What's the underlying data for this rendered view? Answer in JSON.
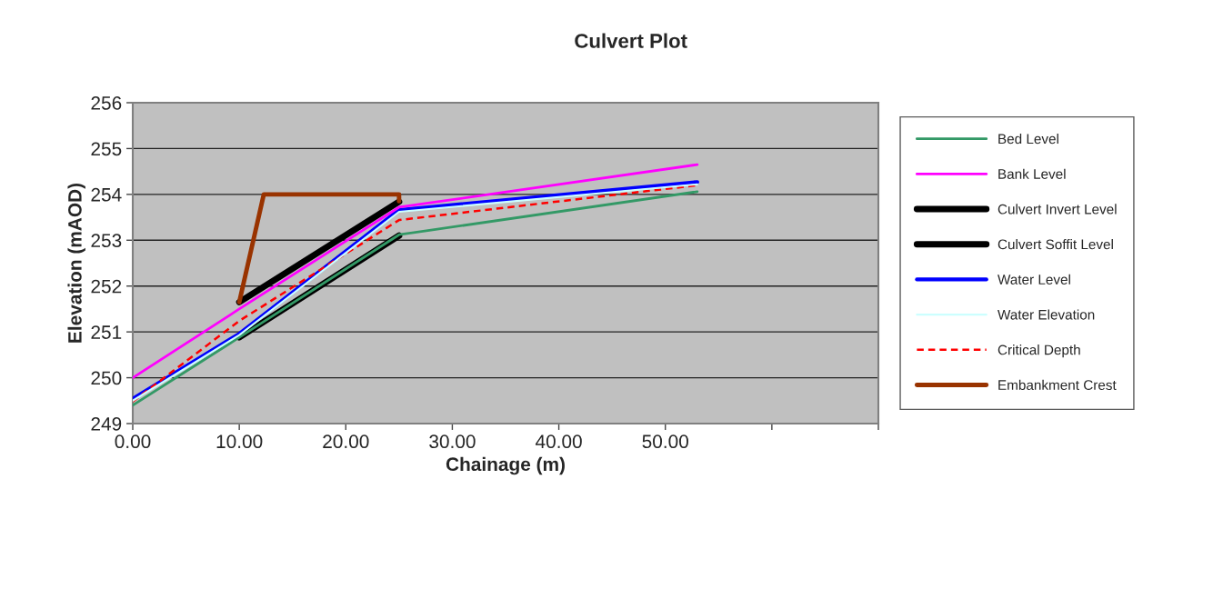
{
  "chart_data": {
    "type": "line",
    "title": "Culvert Plot",
    "xlabel": "Chainage (m)",
    "ylabel": "Elevation (mAOD)",
    "xlim": [
      0,
      70
    ],
    "xticks": [
      {
        "value": 0,
        "label": "0.00"
      },
      {
        "value": 10,
        "label": "10.00"
      },
      {
        "value": 20,
        "label": "20.00"
      },
      {
        "value": 30,
        "label": "30.00"
      },
      {
        "value": 40,
        "label": "40.00"
      },
      {
        "value": 50,
        "label": "50.00"
      },
      {
        "value": 60,
        "label": null
      },
      {
        "value": 70,
        "label": null
      }
    ],
    "ylim": [
      249,
      256
    ],
    "yticks": [
      249,
      250,
      251,
      252,
      253,
      254,
      255,
      256
    ],
    "grid": "y",
    "legend": "right",
    "series": [
      {
        "name": "Bed Level",
        "color": "#339966",
        "x": [
          0,
          10,
          25,
          53
        ],
        "values": [
          249.4,
          250.88,
          253.12,
          254.06
        ]
      },
      {
        "name": "Bank Level",
        "color": "#ff00ff",
        "x": [
          0,
          10,
          25,
          53
        ],
        "values": [
          250.0,
          251.5,
          253.72,
          254.65
        ]
      },
      {
        "name": "Culvert Invert Level",
        "color": "#000000",
        "x": [
          10,
          25
        ],
        "values": [
          250.88,
          253.1
        ]
      },
      {
        "name": "Culvert Soffit Level",
        "color": "#000000",
        "x": [
          10,
          25
        ],
        "values": [
          251.65,
          253.84
        ]
      },
      {
        "name": "Water Level",
        "color": "#0000ff",
        "x": [
          0,
          10,
          25,
          53
        ],
        "values": [
          249.54,
          250.96,
          253.66,
          254.27
        ]
      },
      {
        "name": "Water Elevation",
        "color": "#ccffff",
        "x": [
          0,
          10,
          25,
          53
        ],
        "values": [
          249.5,
          250.93,
          253.62,
          254.22
        ]
      },
      {
        "name": "Critical Depth",
        "color": "#ff0000",
        "line_style": "dashed",
        "x": [
          0,
          10,
          25,
          53
        ],
        "values": [
          249.48,
          251.24,
          253.44,
          254.2
        ]
      },
      {
        "name": "Embankment Crest",
        "color": "#993300",
        "x": [
          10,
          12.3,
          25,
          25
        ],
        "values": [
          251.65,
          254.0,
          254.0,
          253.85
        ]
      }
    ]
  }
}
